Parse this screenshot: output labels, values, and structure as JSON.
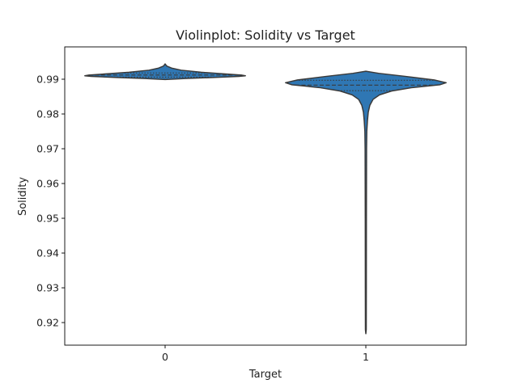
{
  "chart_data": {
    "type": "violin",
    "title": "Violinplot: Solidity vs Target",
    "xlabel": "Target",
    "ylabel": "Solidity",
    "categories": [
      "0",
      "1"
    ],
    "ylim": [
      0.9135,
      0.9993
    ],
    "yticks": [
      0.92,
      0.93,
      0.94,
      0.95,
      0.96,
      0.97,
      0.98,
      0.99
    ],
    "ytick_labels": [
      "0.92",
      "0.93",
      "0.94",
      "0.95",
      "0.96",
      "0.97",
      "0.98",
      "0.99"
    ],
    "grid": false,
    "legend": "none",
    "color": "#2f77b4",
    "edge_color": "#3a3a3a",
    "violins": [
      {
        "category": "0",
        "min": 0.9899,
        "max": 0.9944,
        "q1": 0.9906,
        "median": 0.9912,
        "q3": 0.9918,
        "profile": [
          [
            0.9944,
            0.0
          ],
          [
            0.9938,
            0.02
          ],
          [
            0.9932,
            0.08
          ],
          [
            0.9926,
            0.2
          ],
          [
            0.992,
            0.45
          ],
          [
            0.9916,
            0.7
          ],
          [
            0.9912,
            0.95
          ],
          [
            0.991,
            1.0
          ],
          [
            0.9908,
            0.92
          ],
          [
            0.9905,
            0.6
          ],
          [
            0.9902,
            0.25
          ],
          [
            0.9899,
            0.0
          ]
        ]
      },
      {
        "category": "1",
        "min": 0.9168,
        "max": 0.9923,
        "q1": 0.9867,
        "median": 0.9883,
        "q3": 0.9897,
        "profile": [
          [
            0.9923,
            0.0
          ],
          [
            0.9917,
            0.16
          ],
          [
            0.9908,
            0.5
          ],
          [
            0.9898,
            0.85
          ],
          [
            0.989,
            1.0
          ],
          [
            0.9884,
            0.92
          ],
          [
            0.9876,
            0.58
          ],
          [
            0.9866,
            0.32
          ],
          [
            0.9855,
            0.17
          ],
          [
            0.9842,
            0.09
          ],
          [
            0.9825,
            0.05
          ],
          [
            0.9805,
            0.03
          ],
          [
            0.978,
            0.02
          ],
          [
            0.975,
            0.012
          ],
          [
            0.97,
            0.009
          ],
          [
            0.95,
            0.007
          ],
          [
            0.93,
            0.006
          ],
          [
            0.918,
            0.005
          ],
          [
            0.9168,
            0.0
          ]
        ]
      }
    ]
  }
}
